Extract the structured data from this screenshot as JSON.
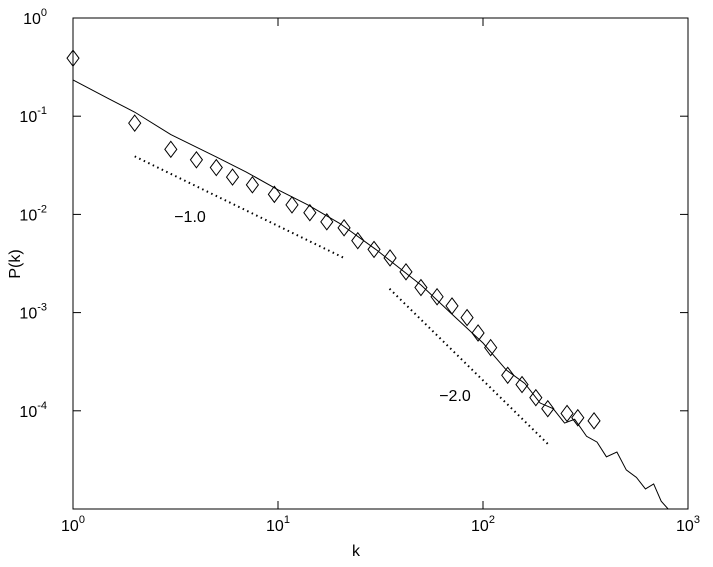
{
  "chart_data": {
    "type": "line",
    "x_label": "k",
    "y_label": "P(k)",
    "xscale": "log",
    "yscale": "log",
    "xlim": [
      1,
      1000
    ],
    "ylim": [
      1e-05,
      1
    ],
    "xticks": [
      {
        "value": 1,
        "label": "10",
        "power": "0"
      },
      {
        "value": 10,
        "label": "10",
        "power": "1"
      },
      {
        "value": 100,
        "label": "10",
        "power": "2"
      },
      {
        "value": 1000,
        "label": "10",
        "power": "3"
      }
    ],
    "yticks": [
      {
        "value": 1,
        "label": "10",
        "power": "0"
      },
      {
        "value": 0.1,
        "label": "10",
        "power": "-1"
      },
      {
        "value": 0.01,
        "label": "10",
        "power": "-2"
      },
      {
        "value": 0.001,
        "label": "10",
        "power": "-3"
      },
      {
        "value": 0.0001,
        "label": "10",
        "power": "-4"
      }
    ],
    "series": [
      {
        "style": "markers",
        "color": "#000000",
        "x": [
          1,
          2,
          3,
          4,
          5,
          6,
          7.5,
          9.6,
          11.7,
          14.3,
          17.3,
          21,
          24.5,
          29.4,
          35.2,
          42.1,
          49.8,
          59.7,
          70.6,
          83.6,
          94.6,
          109,
          132,
          155,
          181,
          207,
          257,
          290,
          348
        ],
        "values": [
          0.39,
          0.085,
          0.046,
          0.036,
          0.03,
          0.024,
          0.02,
          0.016,
          0.0125,
          0.0104,
          0.0084,
          0.0073,
          0.0054,
          0.0044,
          0.0036,
          0.0026,
          0.0018,
          0.00145,
          0.00117,
          0.00089,
          0.00062,
          0.00044,
          0.00023,
          0.000185,
          0.000136,
          0.000105,
          9.4e-05,
          8.5e-05,
          7.9e-05
        ]
      },
      {
        "style": "solid",
        "color": "#000000",
        "x": [
          1,
          1.5,
          2,
          3,
          5,
          7,
          10,
          14,
          20,
          30,
          50,
          70,
          100,
          130,
          160,
          190,
          220,
          250,
          280,
          320,
          360,
          400,
          450,
          500,
          560,
          620,
          680,
          740,
          800
        ],
        "values": [
          0.234,
          0.15,
          0.11,
          0.065,
          0.0385,
          0.027,
          0.0178,
          0.0125,
          0.0081,
          0.0044,
          0.0019,
          0.00098,
          0.00049,
          0.00026,
          0.00019,
          0.00012,
          0.000105,
          7.5e-05,
          8.2e-05,
          5.5e-05,
          4.8e-05,
          3.4e-05,
          3.8e-05,
          2.5e-05,
          2.1e-05,
          1.6e-05,
          1.8e-05,
          1.2e-05,
          1e-05
        ]
      },
      {
        "style": "dotted",
        "color": "#000000",
        "x": [
          2,
          21
        ],
        "values": [
          0.039,
          0.0036
        ]
      },
      {
        "style": "dotted",
        "color": "#000000",
        "x": [
          35,
          207
        ],
        "values": [
          0.00175,
          4.6e-05
        ]
      }
    ],
    "annotations": [
      "−1.0",
      "−2.0"
    ]
  }
}
